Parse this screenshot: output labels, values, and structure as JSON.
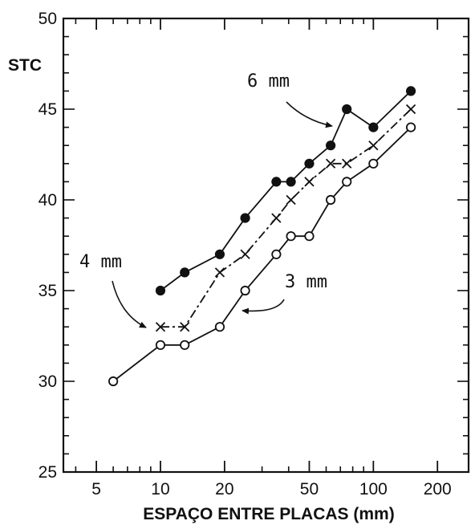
{
  "chart_data": {
    "type": "line",
    "title": "",
    "xlabel": "ESPAÇO ENTRE PLACAS (mm)",
    "ylabel": "STC",
    "xscale": "log",
    "xlim": [
      3.5,
      280
    ],
    "ylim": [
      25,
      50
    ],
    "xticks": [
      5,
      10,
      20,
      50,
      100,
      200
    ],
    "yticks": [
      25,
      30,
      35,
      40,
      45,
      50
    ],
    "grid": false,
    "legend": "none",
    "series": [
      {
        "name": "6 mm",
        "marker": "filled-circle",
        "points": [
          [
            10,
            35
          ],
          [
            13,
            36
          ],
          [
            19,
            37
          ],
          [
            25,
            39
          ],
          [
            35,
            41
          ],
          [
            41,
            41
          ],
          [
            50,
            42
          ],
          [
            63,
            43
          ],
          [
            75,
            45
          ],
          [
            100,
            44
          ],
          [
            150,
            46
          ]
        ]
      },
      {
        "name": "4 mm",
        "marker": "x",
        "points": [
          [
            10,
            33
          ],
          [
            13,
            33
          ],
          [
            19,
            36
          ],
          [
            25,
            37
          ],
          [
            35,
            39
          ],
          [
            41,
            40
          ],
          [
            50,
            41
          ],
          [
            63,
            42
          ],
          [
            75,
            42
          ],
          [
            100,
            43
          ],
          [
            150,
            45
          ]
        ]
      },
      {
        "name": "3 mm",
        "marker": "open-circle",
        "points": [
          [
            6,
            30
          ],
          [
            10,
            32
          ],
          [
            13,
            32
          ],
          [
            19,
            33
          ],
          [
            25,
            35
          ],
          [
            35,
            37
          ],
          [
            41,
            38
          ],
          [
            50,
            38
          ],
          [
            63,
            40
          ],
          [
            75,
            41
          ],
          [
            100,
            42
          ],
          [
            150,
            44
          ]
        ]
      }
    ]
  }
}
